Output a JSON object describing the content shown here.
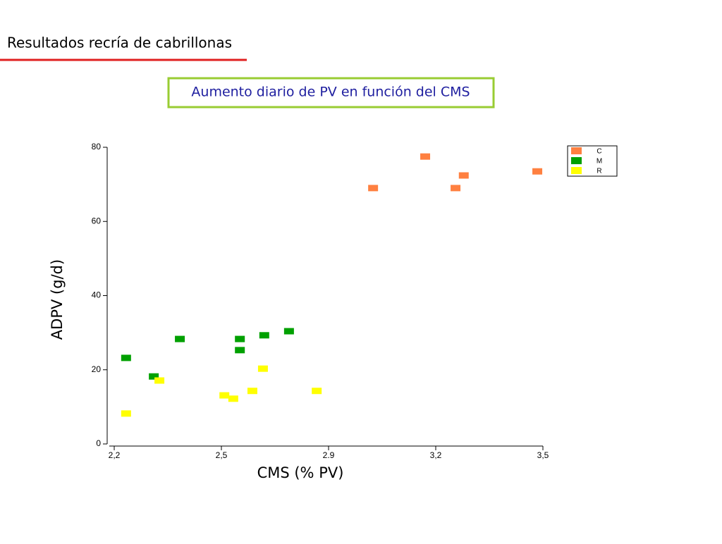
{
  "header": {
    "title": "Resultados recría de cabrillonas"
  },
  "chart_data": {
    "type": "scatter",
    "title": "Aumento diario de PV en función del CMS",
    "x_label": "CMS (% PV)",
    "y_label": "ADPV  (g/d)",
    "xlim": [
      2.2,
      3.5
    ],
    "xticks": [
      {
        "value": 2.2,
        "label": "2,2"
      },
      {
        "value": 2.525,
        "label": "2,5"
      },
      {
        "value": 2.85,
        "label": "2.9"
      },
      {
        "value": 3.175,
        "label": "3,2"
      },
      {
        "value": 3.5,
        "label": "3,5"
      }
    ],
    "ylim": [
      0,
      80
    ],
    "yticks": [
      0,
      20,
      40,
      60,
      80
    ],
    "legend": "top-right",
    "series": [
      {
        "name": "C",
        "color": "#ff8040",
        "x": [
          2.985,
          3.143,
          3.235,
          3.26,
          3.483
        ],
        "values": [
          69,
          77.5,
          69,
          72.4,
          73.5
        ]
      },
      {
        "name": "M",
        "color": "#00a000",
        "x": [
          2.236,
          2.32,
          2.399,
          2.581,
          2.581,
          2.655,
          2.73
        ],
        "values": [
          23.2,
          18.2,
          28.3,
          28.3,
          25.3,
          29.3,
          30.4
        ]
      },
      {
        "name": "R",
        "color": "#ffff00",
        "x": [
          2.236,
          2.337,
          2.534,
          2.561,
          2.619,
          2.651,
          2.814
        ],
        "values": [
          8.2,
          17.1,
          13.1,
          12.2,
          14.3,
          20.3,
          14.3
        ]
      }
    ]
  }
}
